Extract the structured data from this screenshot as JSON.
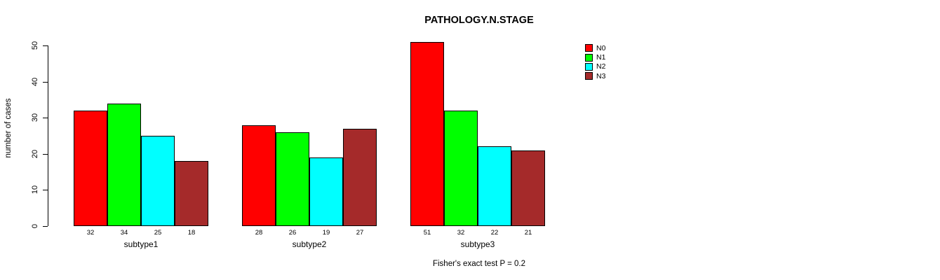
{
  "chart_data": {
    "type": "bar",
    "title": "PATHOLOGY.N.STAGE",
    "xlabel": "",
    "ylabel": "number of cases",
    "categories": [
      "subtype1",
      "subtype2",
      "subtype3"
    ],
    "series": [
      {
        "name": "N0",
        "color": "#ff0000",
        "values": [
          32,
          28,
          51
        ]
      },
      {
        "name": "N1",
        "color": "#00ff00",
        "values": [
          34,
          26,
          32
        ]
      },
      {
        "name": "N2",
        "color": "#00ffff",
        "values": [
          25,
          19,
          22
        ]
      },
      {
        "name": "N3",
        "color": "#a52a2a",
        "values": [
          18,
          27,
          21
        ]
      }
    ],
    "ylim": [
      0,
      50
    ],
    "yticks": [
      0,
      10,
      20,
      30,
      40,
      50
    ],
    "bar_value_labels": true,
    "grid": false,
    "legend_position": "top-right",
    "annotation": "Fisher's exact test P = 0.2"
  }
}
